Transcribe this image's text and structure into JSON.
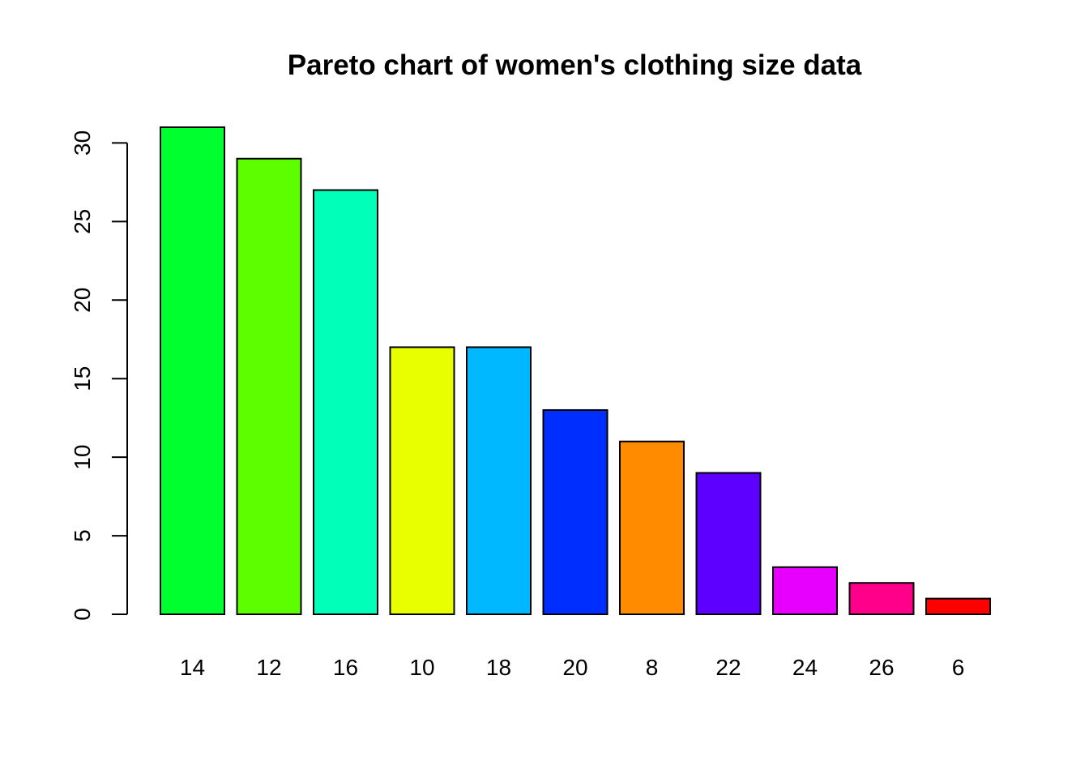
{
  "chart_data": {
    "type": "bar",
    "title": "Pareto chart of women's clothing size data",
    "xlabel": "",
    "ylabel": "",
    "categories": [
      "14",
      "12",
      "16",
      "10",
      "18",
      "20",
      "8",
      "22",
      "24",
      "26",
      "6"
    ],
    "values": [
      31,
      29,
      27,
      17,
      17,
      13,
      11,
      9,
      3,
      2,
      1
    ],
    "colors": [
      "#00FF2E",
      "#5DFF00",
      "#00FFB8",
      "#E8FF00",
      "#00B8FF",
      "#002EFF",
      "#FF8B00",
      "#5D00FF",
      "#E800FF",
      "#FF008B",
      "#FF0000"
    ],
    "ylim": [
      0,
      31
    ],
    "yticks": [
      0,
      5,
      10,
      15,
      20,
      25,
      30
    ],
    "grid": false,
    "legend": "none"
  }
}
